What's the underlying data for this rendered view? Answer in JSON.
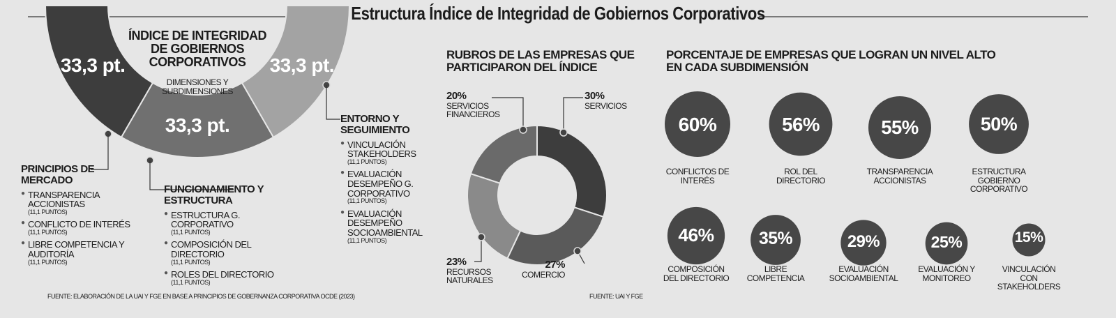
{
  "title": "Estructura Índice de Integridad de Gobiernos Corporativos",
  "chart_data": [
    {
      "type": "semi-donut",
      "title": "ÍNDICE DE  INTEGRIDAD DE GOBIERNOS CORPORATIVOS",
      "subtitle": "DIMENSIONES Y SUBDIMENSIONES",
      "categories": [
        "PRINCIPIOS DE MERCADO",
        "FUNCIONAMIENTO Y ESTRUCTURA",
        "ENTORNO Y SEGUIMIENTO"
      ],
      "values": [
        33.3,
        33.3,
        33.3
      ],
      "value_labels": [
        "33,3 pt.",
        "33,3 pt.",
        "33,3 pt."
      ],
      "colors": [
        "#3d3d3d",
        "#707070",
        "#a3a3a3"
      ],
      "subdimensions": [
        [
          {
            "name": "TRANSPARENCIA ACCIONISTAS",
            "points": "(11,1 PUNTOS)"
          },
          {
            "name": "CONFLICTO DE INTERÉS",
            "points": "(11,1 PUNTOS)"
          },
          {
            "name": "LIBRE COMPETENCIA Y AUDITORÍA",
            "points": "(11,1 PUNTOS)"
          }
        ],
        [
          {
            "name": "ESTRUCTURA G. CORPORATIVO",
            "points": "(11,1 PUNTOS)"
          },
          {
            "name": "COMPOSICIÓN DEL DIRECTORIO",
            "points": "(11,1 PUNTOS)"
          },
          {
            "name": "ROLES DEL DIRECTORIO",
            "points": "(11,1 PUNTOS)"
          }
        ],
        [
          {
            "name": "VINCULACIÓN STAKEHOLDERS",
            "points": "(11,1 PUNTOS)"
          },
          {
            "name": "EVALUACIÓN DESEMPEÑO G. CORPORATIVO",
            "points": "(11,1 PUNTOS)"
          },
          {
            "name": "EVALUACIÓN DESEMPEÑO SOCIOAMBIENTAL",
            "points": "(11,1 PUNTOS)"
          }
        ]
      ],
      "source": "FUENTE: ELABORACIÓN DE LA UAI Y FGE EN BASE A PRINCIPIOS DE GOBERNANZA CORPORATIVA OCDE (2023)"
    },
    {
      "type": "donut",
      "title": "RUBROS DE LAS EMPRESAS QUE PARTICIPARON DEL ÍNDICE",
      "categories": [
        "SERVICIOS",
        "COMERCIO",
        "RECURSOS NATURALES",
        "SERVICIOS FINANCIEROS"
      ],
      "values": [
        30,
        27,
        23,
        20
      ],
      "value_labels": [
        "30%",
        "27%",
        "23%",
        "20%"
      ],
      "colors": [
        "#3d3d3d",
        "#5a5a5a",
        "#8a8a8a",
        "#6a6a6a"
      ],
      "source": "FUENTE: UAI Y FGE"
    },
    {
      "type": "bubble",
      "title": "PORCENTAJE DE EMPRESAS QUE LOGRAN UN NIVEL ALTO EN CADA SUBDIMENSIÓN",
      "categories": [
        "CONFLICTOS DE INTERÉS",
        "ROL DEL DIRECTORIO",
        "TRANSPARENCIA ACCIONISTAS",
        "ESTRUCTURA GOBIERNO CORPORATIVO",
        "COMPOSICIÓN DEL DIRECTORIO",
        "LIBRE COMPETENCIA",
        "EVALUACIÓN SOCIOAMBIENTAL",
        "EVALUACIÓN Y MONITOREO",
        "VINCULACIÓN CON STAKEHOLDERS"
      ],
      "values": [
        60,
        56,
        55,
        50,
        46,
        35,
        29,
        25,
        15
      ],
      "value_labels": [
        "60%",
        "56%",
        "55%",
        "50%",
        "46%",
        "35%",
        "29%",
        "25%",
        "15%"
      ],
      "color": "#474747"
    }
  ]
}
